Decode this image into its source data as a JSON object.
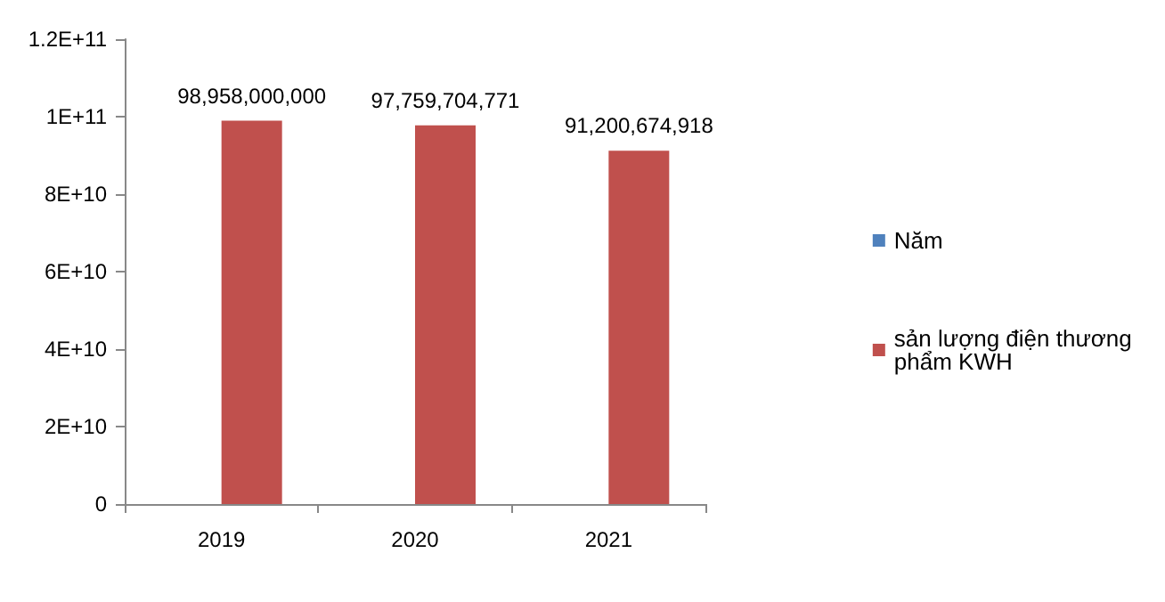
{
  "chart_data": {
    "type": "bar",
    "categories": [
      "2019",
      "2020",
      "2021"
    ],
    "series": [
      {
        "name": "Năm",
        "color": "#4f81bd",
        "values": [
          null,
          null,
          null
        ]
      },
      {
        "name": "sản lượng điện thương phẩm KWH",
        "color": "#c0504d",
        "values": [
          98958000000,
          97759704771,
          91200674918
        ],
        "value_labels": [
          "98,958,000,000",
          "97,759,704,771",
          "91,200,674,918"
        ]
      }
    ],
    "ylim": [
      0,
      120000000000
    ],
    "yticks": [
      0,
      {
        "value": 20000000000,
        "label": "2E+10"
      },
      {
        "value": 40000000000,
        "label": "4E+10"
      },
      {
        "value": 60000000000,
        "label": "6E+10"
      },
      {
        "value": 80000000000,
        "label": "8E+10"
      },
      {
        "value": 100000000000,
        "label": "1E+11"
      },
      {
        "value": 120000000000,
        "label": "1.2E+11"
      }
    ],
    "grid": false,
    "legend": "right"
  }
}
